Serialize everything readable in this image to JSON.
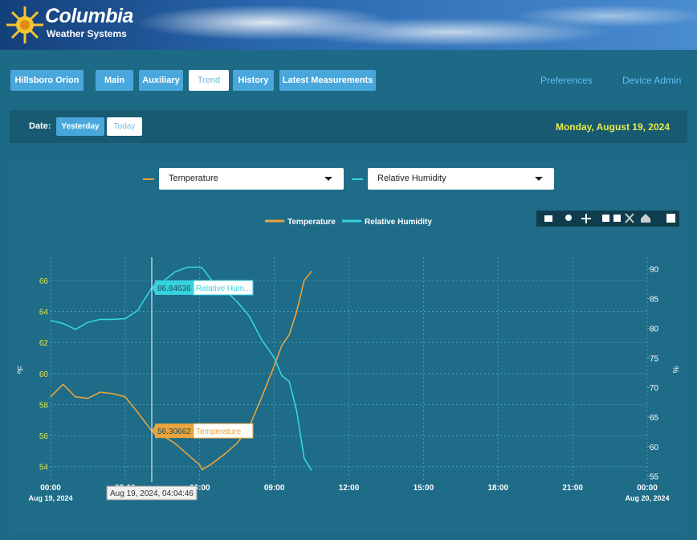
{
  "header": {
    "brand": "Columbia",
    "tagline": "Weather Systems"
  },
  "nav": {
    "station": "Hillsboro Orion",
    "tabs": [
      "Main",
      "Auxiliary",
      "Trend",
      "History",
      "Latest Measurements"
    ],
    "active_tab": 2,
    "links": [
      "Preferences",
      "Device Admin"
    ]
  },
  "date_bar": {
    "label": "Date:",
    "buttons": [
      "Yesterday",
      "Today"
    ],
    "active": 0,
    "current_date": "Monday, August 19, 2024"
  },
  "selectors": [
    "Temperature",
    "Relative Humidity"
  ],
  "chart_data": {
    "type": "line",
    "x": [
      0,
      0.5,
      1,
      1.5,
      2,
      2.5,
      3,
      3.5,
      4.07,
      4.5,
      5,
      5.5,
      6,
      6.1,
      6.5,
      7,
      7.5,
      8,
      8.5,
      9,
      9.3,
      9.6,
      9.9,
      10.2,
      10.5
    ],
    "xlim": [
      0,
      24
    ],
    "xticks": [
      {
        "value": 0,
        "label": "00:00"
      },
      {
        "value": 3,
        "label": "03:00"
      },
      {
        "value": 6,
        "label": "06:00"
      },
      {
        "value": 9,
        "label": "09:00"
      },
      {
        "value": 12,
        "label": "12:00"
      },
      {
        "value": 15,
        "label": "15:00"
      },
      {
        "value": 18,
        "label": "18:00"
      },
      {
        "value": 21,
        "label": "21:00"
      },
      {
        "value": 24,
        "label": "00:00"
      }
    ],
    "x_date_labels": [
      "Aug 19, 2024",
      "Aug 20, 2024"
    ],
    "ylabel": "ºF",
    "y2label": "%",
    "ylim": [
      53,
      67.5
    ],
    "yticks": [
      54,
      56,
      58,
      60,
      62,
      64,
      66
    ],
    "y2lim": [
      54,
      92
    ],
    "y2ticks": [
      55,
      60,
      65,
      70,
      75,
      80,
      85,
      90
    ],
    "grid": true,
    "legend": "top",
    "series": [
      {
        "name": "Temperature",
        "color": "#e9a43c",
        "values": [
          58.5,
          59.3,
          58.5,
          58.4,
          58.8,
          58.7,
          58.5,
          57.5,
          56.3,
          56,
          55.5,
          54.8,
          54.1,
          53.8,
          54.2,
          54.8,
          55.5,
          56.6,
          58.5,
          60.5,
          61.8,
          62.5,
          64,
          66,
          66.6
        ]
      },
      {
        "name": "Relative Humidity",
        "color": "#36d3df",
        "axis": "y2",
        "values": [
          81.3,
          80.8,
          79.8,
          81,
          81.5,
          81.5,
          81.6,
          83,
          86.8,
          87.8,
          89.5,
          90.3,
          90.3,
          90.2,
          88,
          86.5,
          84.5,
          82,
          78,
          75,
          72,
          71,
          66,
          58,
          56
        ]
      }
    ],
    "hover": {
      "label": "Aug 19, 2024, 04:04:46",
      "items": [
        {
          "series": "Relative Hum...",
          "value": 86.84636
        },
        {
          "series": "Temperature",
          "value": 56.30662
        }
      ]
    }
  }
}
